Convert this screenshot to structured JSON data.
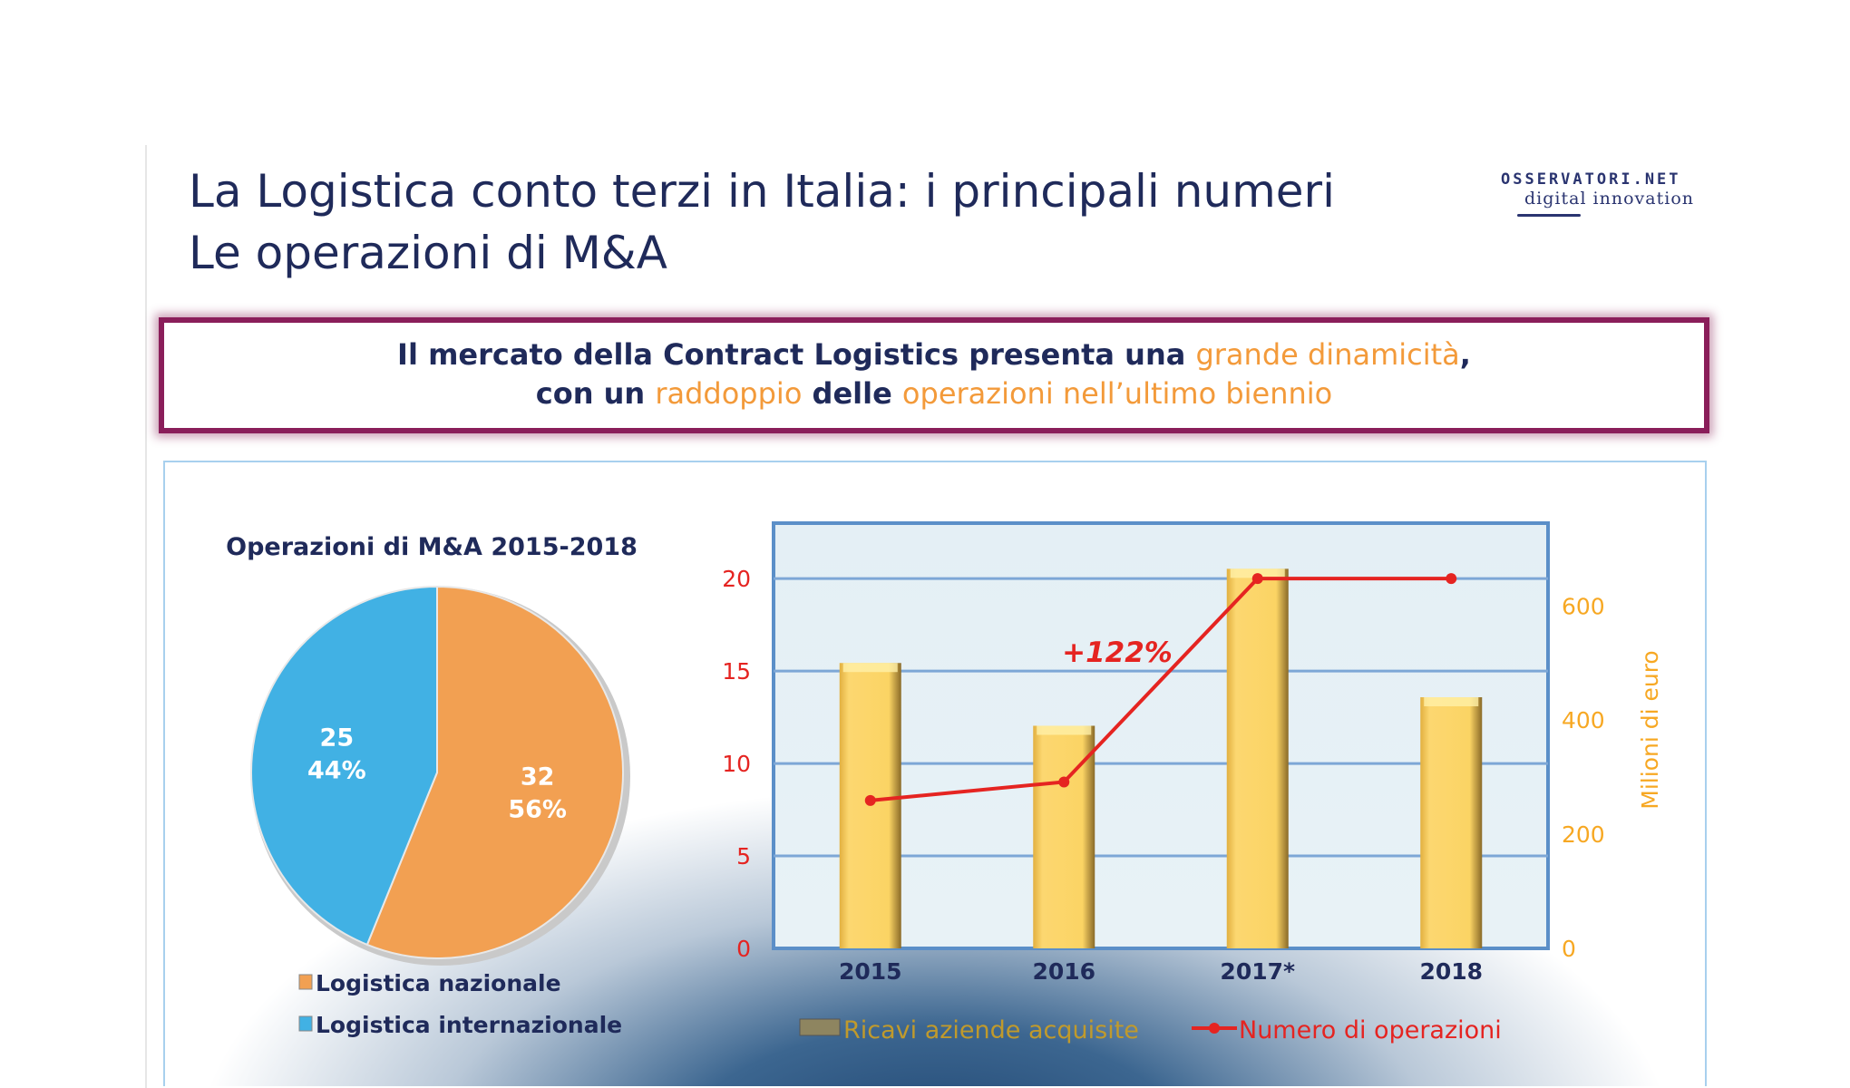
{
  "header": {
    "title_line1": "La Logistica conto terzi in Italia: i principali numeri",
    "title_line2": "Le operazioni di M&A",
    "logo": {
      "line1": "OSSERVATORI.NET",
      "line2": "digital innovation"
    }
  },
  "callout": {
    "line1": [
      {
        "text": "Il mercato della Contract Logistics presenta una ",
        "highlight": false
      },
      {
        "text": "grande dinamicità",
        "highlight": true
      },
      {
        "text": ",",
        "highlight": false
      }
    ],
    "line2": [
      {
        "text": "con un ",
        "highlight": false
      },
      {
        "text": "raddoppio",
        "highlight": true
      },
      {
        "text": " delle ",
        "highlight": false
      },
      {
        "text": "operazioni nell’ultimo biennio",
        "highlight": true
      }
    ],
    "highlight_color": "#f39a3a"
  },
  "chart_data": [
    {
      "type": "pie",
      "title": "Operazioni di M&A 2015-2018",
      "slices": [
        {
          "name": "Logistica nazionale",
          "value": 32,
          "percent_label": "56%",
          "color": "#f2a052"
        },
        {
          "name": "Logistica internazionale",
          "value": 25,
          "percent_label": "44%",
          "color": "#41b1e4"
        }
      ],
      "legend": "bottom-left"
    },
    {
      "type": "bar+line",
      "categories": [
        "2015",
        "2016",
        "2017*",
        "2018"
      ],
      "series": [
        {
          "name": "Ricavi aziende acquisite",
          "type": "bar",
          "axis": "right",
          "values": [
            500,
            390,
            665,
            440
          ],
          "color": "#f9cf5c"
        },
        {
          "name": "Numero di operazioni",
          "type": "line",
          "axis": "left",
          "values": [
            8,
            9,
            20,
            20
          ],
          "color": "#e52421"
        }
      ],
      "y_left": {
        "ticks": [
          0,
          5,
          10,
          15,
          20
        ],
        "ylim": [
          0,
          23
        ],
        "color": "#e52421"
      },
      "y_right": {
        "label": "Milioni di euro",
        "ticks": [
          0,
          200,
          400,
          600
        ],
        "ylim": [
          0,
          745
        ],
        "color": "#f7a823"
      },
      "annotation": "+122%",
      "grid": true,
      "legend": "bottom"
    }
  ]
}
